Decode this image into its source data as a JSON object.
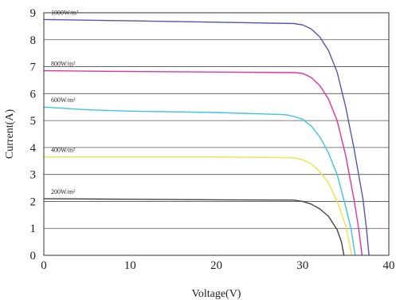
{
  "chart_data": {
    "type": "line",
    "title": "",
    "xlabel": "Voltage(V)",
    "ylabel": "Current(A)",
    "xlim": [
      0,
      40
    ],
    "ylim": [
      0,
      9
    ],
    "x_ticks": [
      "0",
      "10",
      "20",
      "30",
      "40"
    ],
    "y_ticks": [
      "0",
      "1",
      "2",
      "3",
      "4",
      "5",
      "6",
      "7",
      "8",
      "9"
    ],
    "grid": "horizontal",
    "series": [
      {
        "name": "1000W/m²",
        "color": "#5a53b5",
        "points": [
          [
            0,
            8.75
          ],
          [
            10,
            8.7
          ],
          [
            20,
            8.65
          ],
          [
            29,
            8.6
          ],
          [
            30,
            8.55
          ],
          [
            31,
            8.4
          ],
          [
            32,
            8.1
          ],
          [
            33,
            7.6
          ],
          [
            34,
            6.8
          ],
          [
            35,
            5.5
          ],
          [
            36,
            3.9
          ],
          [
            37,
            2.1
          ],
          [
            37.4,
            1.0
          ],
          [
            37.7,
            0
          ]
        ]
      },
      {
        "name": "800W/m²",
        "color": "#e0339e",
        "points": [
          [
            0,
            6.85
          ],
          [
            10,
            6.82
          ],
          [
            20,
            6.8
          ],
          [
            29,
            6.78
          ],
          [
            30,
            6.75
          ],
          [
            31,
            6.6
          ],
          [
            32,
            6.3
          ],
          [
            33,
            5.8
          ],
          [
            34,
            5.0
          ],
          [
            35,
            3.7
          ],
          [
            36,
            2.0
          ],
          [
            36.5,
            1.0
          ],
          [
            36.9,
            0
          ]
        ]
      },
      {
        "name": "600W/m²",
        "color": "#3ec3e0",
        "points": [
          [
            0,
            5.5
          ],
          [
            5,
            5.4
          ],
          [
            10,
            5.35
          ],
          [
            20,
            5.3
          ],
          [
            28,
            5.22
          ],
          [
            29,
            5.15
          ],
          [
            30,
            5.05
          ],
          [
            31,
            4.8
          ],
          [
            32,
            4.4
          ],
          [
            33,
            3.8
          ],
          [
            34,
            3.0
          ],
          [
            35,
            1.8
          ],
          [
            35.6,
            1.0
          ],
          [
            36.1,
            0
          ]
        ]
      },
      {
        "name": "400W/m²",
        "color": "#f0e24a",
        "points": [
          [
            0,
            3.65
          ],
          [
            10,
            3.65
          ],
          [
            20,
            3.65
          ],
          [
            29,
            3.62
          ],
          [
            30,
            3.55
          ],
          [
            31,
            3.4
          ],
          [
            32,
            3.1
          ],
          [
            33,
            2.7
          ],
          [
            34,
            2.0
          ],
          [
            35,
            1.1
          ],
          [
            35.4,
            0.5
          ],
          [
            35.7,
            0
          ]
        ]
      },
      {
        "name": "200W/m²",
        "color": "#444444",
        "points": [
          [
            0,
            2.1
          ],
          [
            10,
            2.08
          ],
          [
            20,
            2.06
          ],
          [
            29,
            2.05
          ],
          [
            30,
            2.0
          ],
          [
            31,
            1.9
          ],
          [
            32,
            1.72
          ],
          [
            33,
            1.45
          ],
          [
            34,
            0.95
          ],
          [
            34.5,
            0.5
          ],
          [
            34.8,
            0
          ]
        ]
      }
    ]
  }
}
